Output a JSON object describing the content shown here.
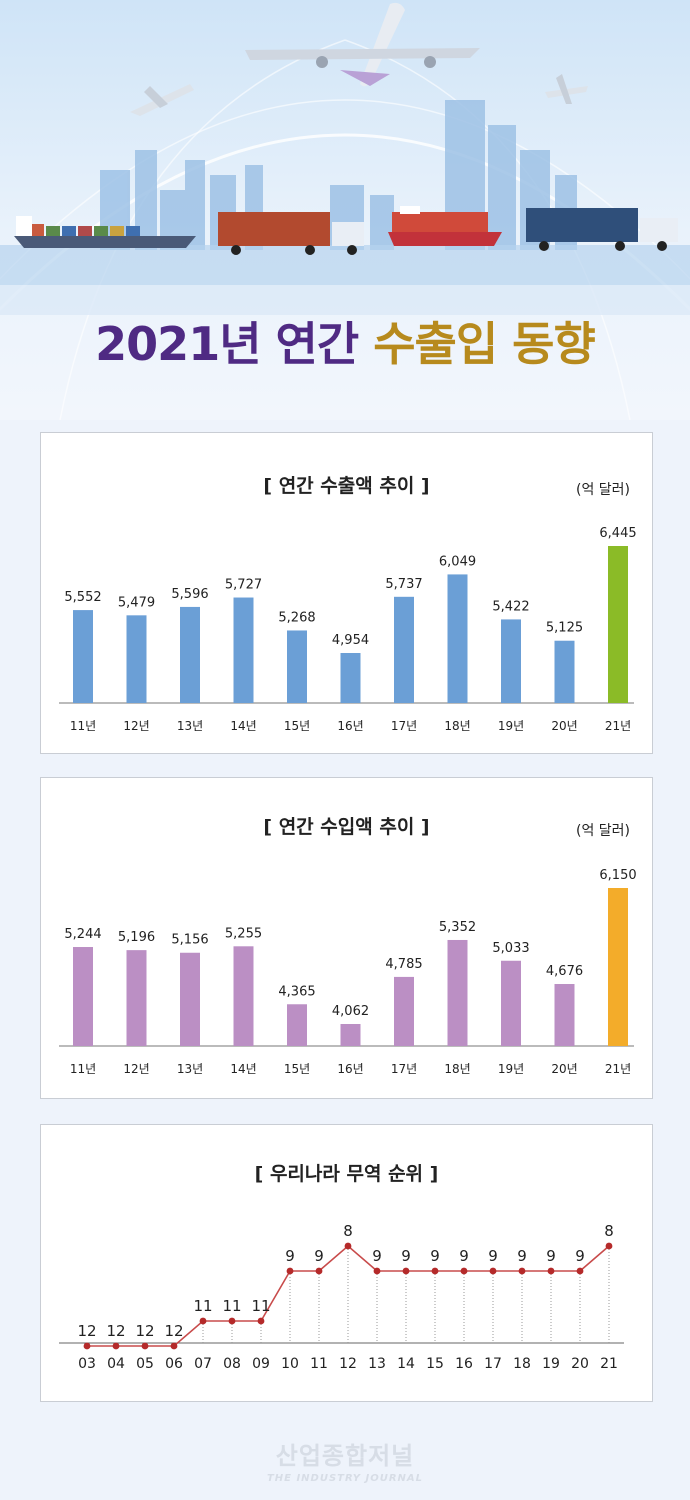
{
  "title": {
    "part1": "2021년 연간",
    "part2": "수출입 동향"
  },
  "chart_data": [
    {
      "type": "bar",
      "title": "[ 연간 수출액 추이 ]",
      "unit": "(억 달러)",
      "categories": [
        "11년",
        "12년",
        "13년",
        "14년",
        "15년",
        "16년",
        "17년",
        "18년",
        "19년",
        "20년",
        "21년"
      ],
      "values": [
        5552,
        5479,
        5596,
        5727,
        5268,
        4954,
        5737,
        6049,
        5422,
        5125,
        6445
      ],
      "labels": [
        "5,552",
        "5,479",
        "5,596",
        "5,727",
        "5,268",
        "4,954",
        "5,737",
        "6,049",
        "5,422",
        "5,125",
        "6,445"
      ],
      "colors": {
        "bar": "#6b9fd6",
        "highlight": "#8bbb27"
      }
    },
    {
      "type": "bar",
      "title": "[ 연간 수입액 추이 ]",
      "unit": "(억 달러)",
      "categories": [
        "11년",
        "12년",
        "13년",
        "14년",
        "15년",
        "16년",
        "17년",
        "18년",
        "19년",
        "20년",
        "21년"
      ],
      "values": [
        5244,
        5196,
        5156,
        5255,
        4365,
        4062,
        4785,
        5352,
        5033,
        4676,
        6150
      ],
      "labels": [
        "5,244",
        "5,196",
        "5,156",
        "5,255",
        "4,365",
        "4,062",
        "4,785",
        "5,352",
        "5,033",
        "4,676",
        "6,150"
      ],
      "colors": {
        "bar": "#bb8fc4",
        "highlight": "#f3ac2a"
      }
    },
    {
      "type": "line",
      "title": "[ 우리나라 무역 순위 ]",
      "categories": [
        "03",
        "04",
        "05",
        "06",
        "07",
        "08",
        "09",
        "10",
        "11",
        "12",
        "13",
        "14",
        "15",
        "16",
        "17",
        "18",
        "19",
        "20",
        "21"
      ],
      "values": [
        12,
        12,
        12,
        12,
        11,
        11,
        11,
        9,
        9,
        8,
        9,
        9,
        9,
        9,
        9,
        9,
        9,
        9,
        8
      ],
      "colors": {
        "line": "#c84b4b",
        "point": "#b52a2a"
      }
    }
  ],
  "watermark": {
    "line1": "산업종합저널",
    "line2": "THE INDUSTRY JOURNAL"
  }
}
